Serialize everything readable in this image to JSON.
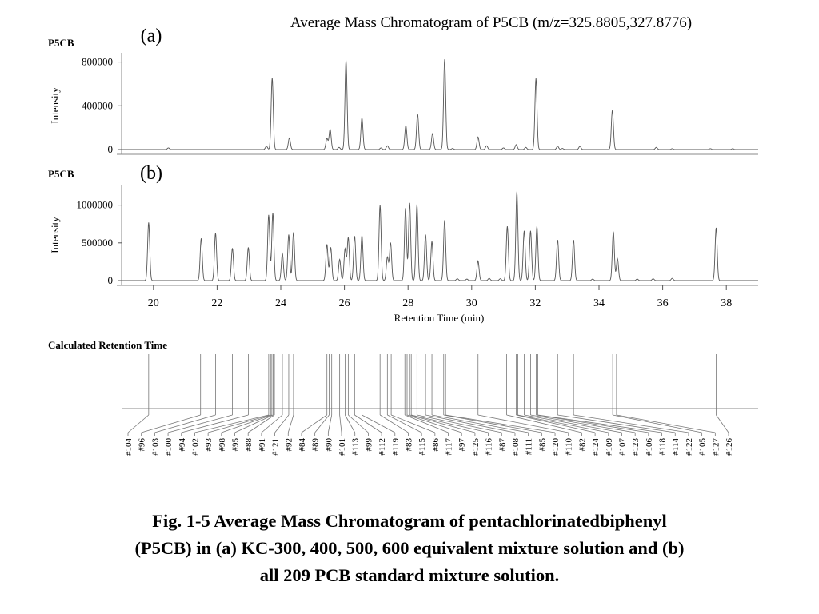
{
  "figure": {
    "title": "Average Mass Chromatogram of P5CB (m/z=325.8805,327.8776)",
    "caption_line1": "Fig. 1-5  Average Mass Chromatogram of pentachlorinatedbiphenyl",
    "caption_line2": "(P5CB) in (a) KC-300, 400, 500, 600 equivalent mixture solution and (b)",
    "caption_line3": "all 209 PCB standard mixture solution."
  },
  "chart_data": [
    {
      "type": "line",
      "panel_tag": "(a)",
      "trace_name": "P5CB",
      "ylabel": "Intensity",
      "ylim": [
        0,
        870000
      ],
      "yticks": [
        0,
        400000,
        800000
      ],
      "xlim": [
        19,
        39
      ],
      "show_x_ticks": false,
      "peaks": [
        {
          "rt": 20.47,
          "h": 15000
        },
        {
          "rt": 23.55,
          "h": 30000
        },
        {
          "rt": 23.73,
          "h": 655000
        },
        {
          "rt": 24.27,
          "h": 105000
        },
        {
          "rt": 25.45,
          "h": 100000
        },
        {
          "rt": 25.55,
          "h": 185000
        },
        {
          "rt": 25.83,
          "h": 20000
        },
        {
          "rt": 26.05,
          "h": 815000
        },
        {
          "rt": 26.55,
          "h": 290000
        },
        {
          "rt": 27.15,
          "h": 15000
        },
        {
          "rt": 27.35,
          "h": 35000
        },
        {
          "rt": 27.93,
          "h": 220000
        },
        {
          "rt": 28.3,
          "h": 325000
        },
        {
          "rt": 28.77,
          "h": 145000
        },
        {
          "rt": 29.15,
          "h": 825000
        },
        {
          "rt": 29.4,
          "h": 10000
        },
        {
          "rt": 30.2,
          "h": 115000
        },
        {
          "rt": 30.47,
          "h": 35000
        },
        {
          "rt": 31.0,
          "h": 15000
        },
        {
          "rt": 31.4,
          "h": 45000
        },
        {
          "rt": 31.7,
          "h": 20000
        },
        {
          "rt": 32.02,
          "h": 650000
        },
        {
          "rt": 32.7,
          "h": 30000
        },
        {
          "rt": 32.85,
          "h": 10000
        },
        {
          "rt": 33.4,
          "h": 30000
        },
        {
          "rt": 34.42,
          "h": 360000
        },
        {
          "rt": 35.8,
          "h": 20000
        },
        {
          "rt": 36.3,
          "h": 8000
        },
        {
          "rt": 37.5,
          "h": 8000
        },
        {
          "rt": 38.2,
          "h": 8000
        }
      ]
    },
    {
      "type": "line",
      "panel_tag": "(b)",
      "trace_name": "P5CB",
      "ylabel": "Intensity",
      "ylim": [
        0,
        1250000
      ],
      "yticks": [
        0,
        500000,
        1000000
      ],
      "xlim": [
        19,
        39
      ],
      "xticks": [
        20,
        22,
        24,
        26,
        28,
        30,
        32,
        34,
        36,
        38
      ],
      "xlabel": "Retention Time (min)",
      "peaks": [
        {
          "rt": 19.85,
          "h": 770000
        },
        {
          "rt": 21.5,
          "h": 560000
        },
        {
          "rt": 21.95,
          "h": 630000
        },
        {
          "rt": 22.48,
          "h": 430000
        },
        {
          "rt": 22.98,
          "h": 440000
        },
        {
          "rt": 23.62,
          "h": 870000
        },
        {
          "rt": 23.75,
          "h": 900000
        },
        {
          "rt": 24.05,
          "h": 360000
        },
        {
          "rt": 24.25,
          "h": 610000
        },
        {
          "rt": 24.4,
          "h": 640000
        },
        {
          "rt": 25.45,
          "h": 480000
        },
        {
          "rt": 25.57,
          "h": 440000
        },
        {
          "rt": 25.85,
          "h": 280000
        },
        {
          "rt": 26.02,
          "h": 420000
        },
        {
          "rt": 26.12,
          "h": 570000
        },
        {
          "rt": 26.32,
          "h": 590000
        },
        {
          "rt": 26.55,
          "h": 600000
        },
        {
          "rt": 27.12,
          "h": 1000000
        },
        {
          "rt": 27.35,
          "h": 310000
        },
        {
          "rt": 27.45,
          "h": 500000
        },
        {
          "rt": 27.92,
          "h": 960000
        },
        {
          "rt": 28.05,
          "h": 1030000
        },
        {
          "rt": 28.28,
          "h": 1010000
        },
        {
          "rt": 28.55,
          "h": 610000
        },
        {
          "rt": 28.75,
          "h": 520000
        },
        {
          "rt": 29.15,
          "h": 800000
        },
        {
          "rt": 29.55,
          "h": 25000
        },
        {
          "rt": 29.85,
          "h": 20000
        },
        {
          "rt": 30.2,
          "h": 260000
        },
        {
          "rt": 30.55,
          "h": 30000
        },
        {
          "rt": 30.9,
          "h": 25000
        },
        {
          "rt": 31.12,
          "h": 720000
        },
        {
          "rt": 31.42,
          "h": 1180000
        },
        {
          "rt": 31.65,
          "h": 660000
        },
        {
          "rt": 31.85,
          "h": 660000
        },
        {
          "rt": 32.05,
          "h": 720000
        },
        {
          "rt": 32.7,
          "h": 540000
        },
        {
          "rt": 33.2,
          "h": 540000
        },
        {
          "rt": 33.8,
          "h": 20000
        },
        {
          "rt": 34.45,
          "h": 650000
        },
        {
          "rt": 34.58,
          "h": 290000
        },
        {
          "rt": 35.2,
          "h": 20000
        },
        {
          "rt": 35.7,
          "h": 25000
        },
        {
          "rt": 36.3,
          "h": 30000
        },
        {
          "rt": 37.68,
          "h": 700000
        }
      ]
    },
    {
      "type": "stick",
      "name": "Calculated Retention Time",
      "xlim": [
        19,
        39
      ],
      "congeners": [
        {
          "label": "#104",
          "rt": 19.85
        },
        {
          "label": "#96",
          "rt": 21.48
        },
        {
          "label": "#103",
          "rt": 21.95
        },
        {
          "label": "#100",
          "rt": 22.48
        },
        {
          "label": "#94",
          "rt": 22.98
        },
        {
          "label": "#102",
          "rt": 23.62
        },
        {
          "label": "#93",
          "rt": 23.68
        },
        {
          "label": "#98",
          "rt": 23.72
        },
        {
          "label": "#95",
          "rt": 23.76
        },
        {
          "label": "#88",
          "rt": 23.8
        },
        {
          "label": "#91",
          "rt": 24.05
        },
        {
          "label": "#121",
          "rt": 24.25
        },
        {
          "label": "#92",
          "rt": 24.4
        },
        {
          "label": "#84",
          "rt": 25.45
        },
        {
          "label": "#89",
          "rt": 25.52
        },
        {
          "label": "#90",
          "rt": 25.6
        },
        {
          "label": "#101",
          "rt": 25.85
        },
        {
          "label": "#113",
          "rt": 26.02
        },
        {
          "label": "#99",
          "rt": 26.12
        },
        {
          "label": "#112",
          "rt": 26.32
        },
        {
          "label": "#119",
          "rt": 26.55
        },
        {
          "label": "#83",
          "rt": 27.12
        },
        {
          "label": "#115",
          "rt": 27.35
        },
        {
          "label": "#86",
          "rt": 27.47
        },
        {
          "label": "#117",
          "rt": 27.9
        },
        {
          "label": "#97",
          "rt": 27.97
        },
        {
          "label": "#125",
          "rt": 28.05
        },
        {
          "label": "#116",
          "rt": 28.1
        },
        {
          "label": "#87",
          "rt": 28.28
        },
        {
          "label": "#108",
          "rt": 28.55
        },
        {
          "label": "#111",
          "rt": 28.75
        },
        {
          "label": "#85",
          "rt": 29.12
        },
        {
          "label": "#120",
          "rt": 29.18
        },
        {
          "label": "#110",
          "rt": 30.2
        },
        {
          "label": "#82",
          "rt": 31.1
        },
        {
          "label": "#124",
          "rt": 31.4
        },
        {
          "label": "#109",
          "rt": 31.45
        },
        {
          "label": "#107",
          "rt": 31.65
        },
        {
          "label": "#123",
          "rt": 31.85
        },
        {
          "label": "#106",
          "rt": 32.03
        },
        {
          "label": "#118",
          "rt": 32.08
        },
        {
          "label": "#114",
          "rt": 32.7
        },
        {
          "label": "#122",
          "rt": 33.2
        },
        {
          "label": "#105",
          "rt": 34.43
        },
        {
          "label": "#127",
          "rt": 34.55
        },
        {
          "label": "#126",
          "rt": 37.68
        }
      ]
    }
  ]
}
